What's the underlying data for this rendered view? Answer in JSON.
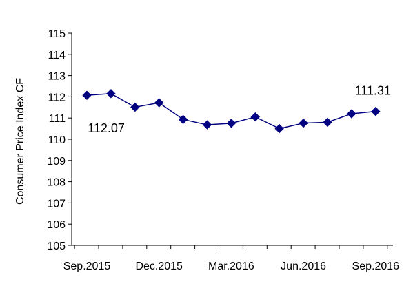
{
  "chart_data": {
    "type": "line",
    "xlabel": "",
    "ylabel": "Consumer Price Index CF",
    "ylim": [
      105,
      115
    ],
    "yticks": [
      105,
      106,
      107,
      108,
      109,
      110,
      111,
      112,
      113,
      114,
      115
    ],
    "x_tick_labels": [
      "Sep.2015",
      "Dec.2015",
      "Mar.2016",
      "Jun.2016",
      "Sep.2016"
    ],
    "x": [
      "Sep.2015",
      "Oct.2015",
      "Nov.2015",
      "Dec.2015",
      "Jan.2016",
      "Feb.2016",
      "Mar.2016",
      "Apr.2016",
      "May.2016",
      "Jun.2016",
      "Jul.2016",
      "Aug.2016",
      "Sep.2016"
    ],
    "series": [
      {
        "values": [
          112.07,
          112.15,
          111.51,
          111.72,
          110.93,
          110.68,
          110.75,
          111.05,
          110.5,
          110.76,
          110.8,
          111.2,
          111.31
        ]
      }
    ],
    "annotations": [
      {
        "text": "112.07",
        "point_index": 0
      },
      {
        "text": "111.31",
        "point_index": 12
      }
    ],
    "grid": false,
    "line_color": "#000080",
    "marker": "diamond"
  }
}
